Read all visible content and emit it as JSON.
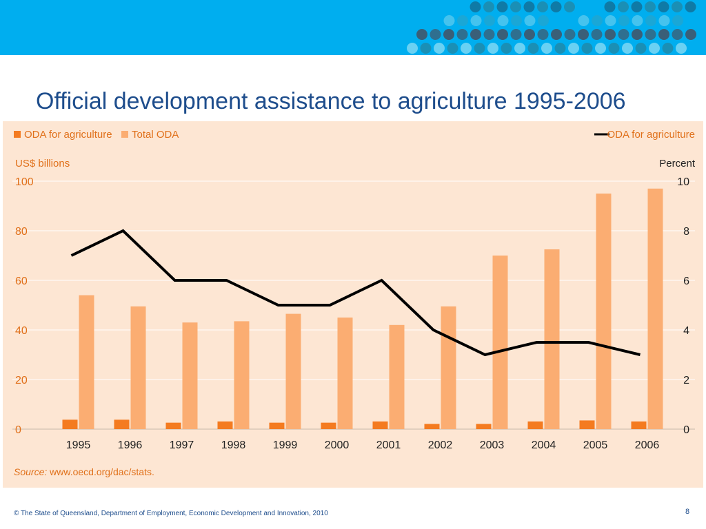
{
  "slide": {
    "title": "Official development assistance to agriculture 1995-2006",
    "footer": "© The State of Queensland, Department of Employment, Economic Development and Innovation, 2010",
    "page_number": "8"
  },
  "colors": {
    "banner": "#00aeef",
    "panel": "#fde6d3",
    "oda_agriculture_bar": "#f47b20",
    "total_oda_bar": "#fbad72",
    "line": "#000000",
    "axis_text": "#e0701a",
    "title": "#1e4d8c"
  },
  "chart_data": {
    "type": "bar",
    "title": "",
    "categories": [
      "1995",
      "1996",
      "1997",
      "1998",
      "1999",
      "2000",
      "2001",
      "2002",
      "2003",
      "2004",
      "2005",
      "2006"
    ],
    "series": [
      {
        "name": "ODA for agriculture",
        "kind": "bar",
        "axis": "left",
        "values": [
          3.8,
          3.8,
          2.6,
          3.1,
          2.6,
          2.6,
          3.1,
          2.1,
          2.1,
          3.1,
          3.5,
          3.1
        ]
      },
      {
        "name": "Total ODA",
        "kind": "bar",
        "axis": "left",
        "values": [
          54,
          49.5,
          43,
          43.5,
          46.5,
          45,
          42,
          49.5,
          70,
          72.5,
          95,
          97
        ]
      },
      {
        "name": "ODA for agriculture",
        "kind": "line",
        "axis": "right",
        "values": [
          7,
          8,
          6,
          6,
          5,
          5,
          6,
          4,
          3,
          3.5,
          3.5,
          3
        ]
      }
    ],
    "ylabel_left": "US$ billions",
    "ylabel_right": "Percent",
    "ylim_left": [
      0,
      100
    ],
    "ylim_right": [
      0,
      10
    ],
    "yticks_left": [
      "0",
      "20",
      "40",
      "60",
      "80",
      "100"
    ],
    "yticks_right": [
      "0",
      "2",
      "4",
      "6",
      "8",
      "10"
    ],
    "legend_left": [
      "ODA for agriculture",
      "Total ODA"
    ],
    "legend_right": [
      "ODA for agriculture"
    ],
    "legend_position": "top",
    "grid": true,
    "source_label": "Source:",
    "source_text": " www.oecd.org/dac/stats."
  }
}
